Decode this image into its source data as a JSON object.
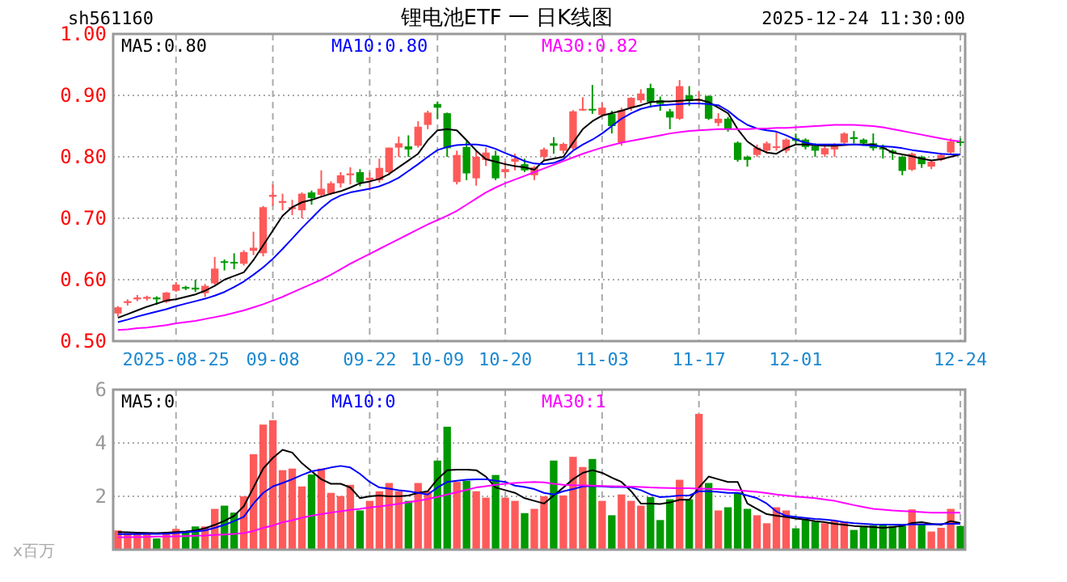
{
  "chart_data": [
    {
      "type": "candlestick",
      "title": "锂电池ETF 一 日K线图",
      "annotations": [
        "sh561160",
        "2025-12-24 11:30:00"
      ],
      "categories": [
        null,
        null,
        null,
        null,
        null,
        null,
        "2025-08-25",
        null,
        null,
        null,
        null,
        null,
        null,
        null,
        null,
        null,
        "09-08",
        null,
        null,
        null,
        null,
        null,
        null,
        null,
        null,
        null,
        "09-22",
        null,
        null,
        null,
        null,
        null,
        null,
        "10-09",
        null,
        null,
        null,
        null,
        null,
        null,
        "10-20",
        null,
        null,
        null,
        null,
        null,
        null,
        null,
        null,
        null,
        "11-03",
        null,
        null,
        null,
        null,
        null,
        null,
        null,
        null,
        null,
        "11-17",
        null,
        null,
        null,
        null,
        null,
        null,
        null,
        null,
        null,
        "12-01",
        null,
        null,
        null,
        null,
        null,
        null,
        null,
        null,
        null,
        null,
        null,
        null,
        null,
        null,
        null,
        null,
        "12-24"
      ],
      "ohlc": [
        [
          0.545,
          0.557,
          0.54,
          0.555
        ],
        [
          0.562,
          0.568,
          0.558,
          0.565
        ],
        [
          0.568,
          0.575,
          0.565,
          0.571
        ],
        [
          0.569,
          0.574,
          0.566,
          0.572
        ],
        [
          0.571,
          0.573,
          0.559,
          0.568
        ],
        [
          0.564,
          0.58,
          0.562,
          0.579
        ],
        [
          0.582,
          0.596,
          0.58,
          0.592
        ],
        [
          0.588,
          0.59,
          0.583,
          0.586
        ],
        [
          0.587,
          0.6,
          0.58,
          0.584
        ],
        [
          0.578,
          0.593,
          0.572,
          0.59
        ],
        [
          0.594,
          0.637,
          0.592,
          0.618
        ],
        [
          0.63,
          0.633,
          0.615,
          0.628
        ],
        [
          0.629,
          0.643,
          0.617,
          0.627
        ],
        [
          0.626,
          0.648,
          0.623,
          0.645
        ],
        [
          0.647,
          0.678,
          0.64,
          0.652
        ],
        [
          0.643,
          0.72,
          0.638,
          0.718
        ],
        [
          0.735,
          0.755,
          0.72,
          0.738
        ],
        [
          0.725,
          0.74,
          0.713,
          0.728
        ],
        [
          0.715,
          0.73,
          0.705,
          0.718
        ],
        [
          0.713,
          0.742,
          0.7,
          0.74
        ],
        [
          0.742,
          0.745,
          0.722,
          0.733
        ],
        [
          0.738,
          0.778,
          0.735,
          0.748
        ],
        [
          0.74,
          0.76,
          0.738,
          0.757
        ],
        [
          0.757,
          0.775,
          0.75,
          0.77
        ],
        [
          0.77,
          0.783,
          0.755,
          0.773
        ],
        [
          0.775,
          0.78,
          0.752,
          0.758
        ],
        [
          0.762,
          0.775,
          0.745,
          0.766
        ],
        [
          0.762,
          0.797,
          0.758,
          0.782
        ],
        [
          0.775,
          0.815,
          0.77,
          0.815
        ],
        [
          0.815,
          0.833,
          0.8,
          0.822
        ],
        [
          0.817,
          0.835,
          0.8,
          0.812
        ],
        [
          0.818,
          0.858,
          0.815,
          0.849
        ],
        [
          0.852,
          0.875,
          0.845,
          0.872
        ],
        [
          0.886,
          0.89,
          0.862,
          0.88
        ],
        [
          0.871,
          0.872,
          0.8,
          0.814
        ],
        [
          0.759,
          0.81,
          0.755,
          0.803
        ],
        [
          0.816,
          0.825,
          0.762,
          0.773
        ],
        [
          0.765,
          0.81,
          0.753,
          0.8
        ],
        [
          0.795,
          0.815,
          0.785,
          0.807
        ],
        [
          0.802,
          0.81,
          0.762,
          0.765
        ],
        [
          0.775,
          0.792,
          0.765,
          0.78
        ],
        [
          0.792,
          0.805,
          0.778,
          0.797
        ],
        [
          0.788,
          0.797,
          0.775,
          0.778
        ],
        [
          0.77,
          0.785,
          0.762,
          0.783
        ],
        [
          0.8,
          0.815,
          0.795,
          0.812
        ],
        [
          0.822,
          0.832,
          0.805,
          0.818
        ],
        [
          0.81,
          0.823,
          0.805,
          0.821
        ],
        [
          0.814,
          0.876,
          0.812,
          0.874
        ],
        [
          0.876,
          0.897,
          0.875,
          0.878
        ],
        [
          0.878,
          0.917,
          0.87,
          0.876
        ],
        [
          0.868,
          0.888,
          0.865,
          0.88
        ],
        [
          0.87,
          0.875,
          0.838,
          0.85
        ],
        [
          0.823,
          0.88,
          0.818,
          0.876
        ],
        [
          0.88,
          0.897,
          0.875,
          0.896
        ],
        [
          0.892,
          0.91,
          0.888,
          0.903
        ],
        [
          0.912,
          0.919,
          0.88,
          0.889
        ],
        [
          0.892,
          0.898,
          0.875,
          0.886
        ],
        [
          0.874,
          0.878,
          0.845,
          0.864
        ],
        [
          0.862,
          0.925,
          0.86,
          0.915
        ],
        [
          0.9,
          0.915,
          0.883,
          0.891
        ],
        [
          0.891,
          0.906,
          0.885,
          0.894
        ],
        [
          0.899,
          0.9,
          0.86,
          0.862
        ],
        [
          0.855,
          0.871,
          0.85,
          0.862
        ],
        [
          0.862,
          0.865,
          0.841,
          0.845
        ],
        [
          0.823,
          0.825,
          0.792,
          0.795
        ],
        [
          0.8,
          0.802,
          0.784,
          0.795
        ],
        [
          0.803,
          0.82,
          0.8,
          0.815
        ],
        [
          0.81,
          0.825,
          0.805,
          0.822
        ],
        [
          0.815,
          0.84,
          0.81,
          0.817
        ],
        [
          0.81,
          0.83,
          0.806,
          0.828
        ],
        [
          0.83,
          0.838,
          0.82,
          0.826
        ],
        [
          0.828,
          0.83,
          0.812,
          0.816
        ],
        [
          0.818,
          0.822,
          0.8,
          0.81
        ],
        [
          0.804,
          0.818,
          0.8,
          0.814
        ],
        [
          0.812,
          0.822,
          0.8,
          0.82
        ],
        [
          0.823,
          0.84,
          0.82,
          0.838
        ],
        [
          0.832,
          0.842,
          0.822,
          0.829
        ],
        [
          0.828,
          0.83,
          0.818,
          0.822
        ],
        [
          0.822,
          0.838,
          0.81,
          0.814
        ],
        [
          0.815,
          0.82,
          0.797,
          0.812
        ],
        [
          0.81,
          0.812,
          0.795,
          0.806
        ],
        [
          0.8,
          0.802,
          0.77,
          0.777
        ],
        [
          0.779,
          0.807,
          0.777,
          0.805
        ],
        [
          0.8,
          0.802,
          0.782,
          0.788
        ],
        [
          0.784,
          0.795,
          0.78,
          0.792
        ],
        [
          0.795,
          0.806,
          0.793,
          0.803
        ],
        [
          0.807,
          0.83,
          0.805,
          0.825
        ],
        [
          0.825,
          0.83,
          0.817,
          0.823
        ]
      ],
      "colors": [
        "#ff5a5a",
        "#ff5a5a",
        "#ff5a5a",
        "#ff5a5a",
        "#009900",
        "#ff5a5a",
        "#ff5a5a",
        "#009900",
        "#009900",
        "#ff5a5a",
        "#ff5a5a",
        "#009900",
        "#009900",
        "#ff5a5a",
        "#ff5a5a",
        "#ff5a5a",
        "#ff5a5a",
        "#ff5a5a",
        "#ff5a5a",
        "#ff5a5a",
        "#009900",
        "#ff5a5a",
        "#ff5a5a",
        "#ff5a5a",
        "#ff5a5a",
        "#009900",
        "#ff5a5a",
        "#ff5a5a",
        "#ff5a5a",
        "#ff5a5a",
        "#009900",
        "#ff5a5a",
        "#ff5a5a",
        "#009900",
        "#009900",
        "#ff5a5a",
        "#009900",
        "#ff5a5a",
        "#ff5a5a",
        "#009900",
        "#ff5a5a",
        "#ff5a5a",
        "#009900",
        "#ff5a5a",
        "#ff5a5a",
        "#009900",
        "#ff5a5a",
        "#ff5a5a",
        "#ff5a5a",
        "#009900",
        "#ff5a5a",
        "#009900",
        "#ff5a5a",
        "#ff5a5a",
        "#ff5a5a",
        "#009900",
        "#009900",
        "#009900",
        "#ff5a5a",
        "#009900",
        "#ff5a5a",
        "#009900",
        "#ff5a5a",
        "#009900",
        "#009900",
        "#009900",
        "#ff5a5a",
        "#ff5a5a",
        "#ff5a5a",
        "#ff5a5a",
        "#009900",
        "#009900",
        "#009900",
        "#ff5a5a",
        "#ff5a5a",
        "#ff5a5a",
        "#009900",
        "#009900",
        "#009900",
        "#009900",
        "#009900",
        "#009900",
        "#ff5a5a",
        "#009900",
        "#ff5a5a",
        "#ff5a5a",
        "#ff5a5a",
        "#009900"
      ],
      "series": [
        {
          "type": "line",
          "name": "MA5:0.80",
          "color": "#000000",
          "values": [
            0.538,
            0.544,
            0.55,
            0.556,
            0.561,
            0.566,
            0.568,
            0.572,
            0.576,
            0.582,
            0.59,
            0.6,
            0.606,
            0.612,
            0.632,
            0.656,
            0.68,
            0.704,
            0.718,
            0.726,
            0.73,
            0.735,
            0.74,
            0.744,
            0.75,
            0.757,
            0.76,
            0.764,
            0.772,
            0.783,
            0.794,
            0.805,
            0.827,
            0.843,
            0.845,
            0.843,
            0.827,
            0.81,
            0.796,
            0.792,
            0.788,
            0.785,
            0.783,
            0.779,
            0.794,
            0.797,
            0.8,
            0.823,
            0.845,
            0.858,
            0.867,
            0.871,
            0.875,
            0.88,
            0.884,
            0.889,
            0.89,
            0.89,
            0.891,
            0.892,
            0.893,
            0.889,
            0.88,
            0.871,
            0.845,
            0.825,
            0.814,
            0.807,
            0.805,
            0.814,
            0.82,
            0.82,
            0.819,
            0.818,
            0.818,
            0.819,
            0.82,
            0.82,
            0.82,
            0.815,
            0.807,
            0.804,
            0.801,
            0.797,
            0.794,
            0.796,
            0.8,
            0.804
          ]
        },
        {
          "type": "line",
          "name": "MA10:0.80",
          "color": "#0000ff",
          "values": [
            0.531,
            0.535,
            0.54,
            0.544,
            0.548,
            0.552,
            0.557,
            0.561,
            0.565,
            0.569,
            0.574,
            0.58,
            0.588,
            0.597,
            0.608,
            0.62,
            0.634,
            0.65,
            0.667,
            0.684,
            0.7,
            0.716,
            0.729,
            0.737,
            0.742,
            0.745,
            0.748,
            0.752,
            0.758,
            0.766,
            0.777,
            0.788,
            0.8,
            0.811,
            0.816,
            0.819,
            0.82,
            0.82,
            0.818,
            0.813,
            0.806,
            0.8,
            0.793,
            0.789,
            0.788,
            0.79,
            0.796,
            0.81,
            0.82,
            0.828,
            0.838,
            0.85,
            0.862,
            0.871,
            0.878,
            0.882,
            0.884,
            0.885,
            0.886,
            0.887,
            0.887,
            0.886,
            0.884,
            0.875,
            0.862,
            0.852,
            0.846,
            0.843,
            0.841,
            0.835,
            0.828,
            0.823,
            0.82,
            0.82,
            0.82,
            0.82,
            0.82,
            0.819,
            0.818,
            0.817,
            0.816,
            0.814,
            0.811,
            0.809,
            0.807,
            0.805,
            0.804,
            0.804
          ]
        },
        {
          "type": "line",
          "name": "MA30:0.82",
          "color": "#ff00ff",
          "values": [
            0.518,
            0.519,
            0.521,
            0.522,
            0.524,
            0.526,
            0.529,
            0.531,
            0.533,
            0.536,
            0.539,
            0.542,
            0.546,
            0.55,
            0.555,
            0.56,
            0.566,
            0.572,
            0.579,
            0.586,
            0.593,
            0.6,
            0.608,
            0.617,
            0.626,
            0.634,
            0.642,
            0.65,
            0.658,
            0.666,
            0.674,
            0.682,
            0.69,
            0.697,
            0.704,
            0.712,
            0.722,
            0.732,
            0.742,
            0.75,
            0.757,
            0.763,
            0.769,
            0.775,
            0.781,
            0.787,
            0.793,
            0.799,
            0.805,
            0.81,
            0.815,
            0.819,
            0.823,
            0.826,
            0.829,
            0.832,
            0.835,
            0.838,
            0.84,
            0.842,
            0.843,
            0.844,
            0.845,
            0.845,
            0.845,
            0.845,
            0.846,
            0.846,
            0.847,
            0.847,
            0.848,
            0.849,
            0.85,
            0.851,
            0.852,
            0.852,
            0.852,
            0.851,
            0.85,
            0.848,
            0.845,
            0.842,
            0.839,
            0.836,
            0.833,
            0.83,
            0.827,
            0.825
          ]
        }
      ],
      "ylim": [
        0.5,
        1.0
      ],
      "yticks": [
        {
          "value": 0.5,
          "label": "0.50"
        },
        {
          "value": 0.6,
          "label": "0.60"
        },
        {
          "value": 0.7,
          "label": "0.70"
        },
        {
          "value": 0.8,
          "label": "0.80"
        },
        {
          "value": 0.9,
          "label": "0.90"
        },
        {
          "value": 1.0,
          "label": "1.00"
        }
      ],
      "grid": true,
      "legend": "top"
    },
    {
      "type": "bar",
      "ylabel": "x百万",
      "categories": [
        null,
        null,
        null,
        null,
        null,
        null,
        null,
        null,
        null,
        null,
        null,
        null,
        null,
        null,
        null,
        null,
        null,
        null,
        null,
        null,
        null,
        null,
        null,
        null,
        null,
        null,
        null,
        null,
        null,
        null,
        null,
        null,
        null,
        null,
        null,
        null,
        null,
        null,
        null,
        null,
        null,
        null,
        null,
        null,
        null,
        null,
        null,
        null,
        null,
        null,
        null,
        null,
        null,
        null,
        null,
        null,
        null,
        null,
        null,
        null,
        null,
        null,
        null,
        null,
        null,
        null,
        null,
        null,
        null,
        null,
        null,
        null,
        null,
        null,
        null,
        null,
        null,
        null,
        null,
        null,
        null,
        null,
        null,
        null,
        null,
        null,
        null,
        null
      ],
      "values": [
        0.72,
        0.62,
        0.58,
        0.58,
        0.42,
        0.66,
        0.78,
        0.66,
        0.87,
        0.87,
        1.53,
        1.65,
        1.39,
        2.0,
        3.58,
        4.69,
        4.85,
        2.98,
        3.04,
        2.37,
        2.82,
        3.04,
        2.13,
        2.01,
        2.43,
        1.47,
        1.83,
        2.19,
        2.5,
        2.19,
        1.83,
        2.5,
        2.19,
        3.34,
        4.61,
        2.54,
        2.58,
        2.19,
        1.95,
        2.8,
        1.95,
        1.83,
        1.37,
        1.53,
        2.0,
        3.34,
        2.03,
        3.48,
        3.1,
        3.4,
        1.83,
        1.29,
        2.07,
        1.83,
        1.65,
        1.97,
        1.11,
        1.89,
        2.62,
        1.89,
        5.09,
        2.5,
        1.47,
        1.59,
        2.15,
        1.53,
        1.29,
        0.99,
        1.59,
        1.47,
        0.8,
        1.15,
        1.05,
        0.99,
        1.09,
        1.05,
        0.74,
        0.89,
        0.91,
        0.93,
        0.89,
        0.89,
        1.51,
        0.95,
        0.68,
        0.82,
        1.53,
        0.89
      ],
      "colors": [
        "#ff5a5a",
        "#ff5a5a",
        "#ff5a5a",
        "#ff5a5a",
        "#009900",
        "#ff5a5a",
        "#ff5a5a",
        "#009900",
        "#009900",
        "#ff5a5a",
        "#ff5a5a",
        "#009900",
        "#009900",
        "#ff5a5a",
        "#ff5a5a",
        "#ff5a5a",
        "#ff5a5a",
        "#ff5a5a",
        "#ff5a5a",
        "#ff5a5a",
        "#009900",
        "#ff5a5a",
        "#ff5a5a",
        "#ff5a5a",
        "#ff5a5a",
        "#009900",
        "#ff5a5a",
        "#ff5a5a",
        "#ff5a5a",
        "#ff5a5a",
        "#009900",
        "#ff5a5a",
        "#ff5a5a",
        "#009900",
        "#009900",
        "#ff5a5a",
        "#009900",
        "#ff5a5a",
        "#ff5a5a",
        "#009900",
        "#ff5a5a",
        "#ff5a5a",
        "#009900",
        "#ff5a5a",
        "#ff5a5a",
        "#009900",
        "#ff5a5a",
        "#ff5a5a",
        "#ff5a5a",
        "#009900",
        "#ff5a5a",
        "#009900",
        "#ff5a5a",
        "#ff5a5a",
        "#ff5a5a",
        "#009900",
        "#009900",
        "#009900",
        "#ff5a5a",
        "#009900",
        "#ff5a5a",
        "#009900",
        "#ff5a5a",
        "#009900",
        "#009900",
        "#009900",
        "#ff5a5a",
        "#ff5a5a",
        "#ff5a5a",
        "#ff5a5a",
        "#009900",
        "#009900",
        "#009900",
        "#ff5a5a",
        "#ff5a5a",
        "#ff5a5a",
        "#009900",
        "#009900",
        "#009900",
        "#009900",
        "#009900",
        "#009900",
        "#ff5a5a",
        "#009900",
        "#ff5a5a",
        "#ff5a5a",
        "#ff5a5a",
        "#009900"
      ],
      "series": [
        {
          "type": "line",
          "name": "MA5:0",
          "color": "#000000",
          "values": [
            0.66,
            0.65,
            0.64,
            0.63,
            0.62,
            0.64,
            0.66,
            0.68,
            0.72,
            0.8,
            0.93,
            1.08,
            1.27,
            1.63,
            2.33,
            3.04,
            3.44,
            3.74,
            3.64,
            3.24,
            2.94,
            2.64,
            2.47,
            2.47,
            2.33,
            1.93,
            2.0,
            2.03,
            2.0,
            2.0,
            2.03,
            2.13,
            2.19,
            2.64,
            2.98,
            3.0,
            3.0,
            2.98,
            2.74,
            2.33,
            2.23,
            2.13,
            1.93,
            1.83,
            1.73,
            2.03,
            2.33,
            2.64,
            2.88,
            2.98,
            2.88,
            2.7,
            2.54,
            2.19,
            1.73,
            1.73,
            1.71,
            1.77,
            1.87,
            1.87,
            2.33,
            2.74,
            2.64,
            2.54,
            2.54,
            1.73,
            1.53,
            1.33,
            1.27,
            1.23,
            1.17,
            1.13,
            1.07,
            1.03,
            0.97,
            0.93,
            0.89,
            0.87,
            0.85,
            0.82,
            0.85,
            0.89,
            1.0,
            1.03,
            0.97,
            0.93,
            1.07,
            1.0
          ]
        },
        {
          "type": "line",
          "name": "MA10:0",
          "color": "#0000ff",
          "values": [
            0.58,
            0.58,
            0.58,
            0.59,
            0.59,
            0.6,
            0.62,
            0.65,
            0.68,
            0.72,
            0.82,
            0.93,
            1.07,
            1.23,
            1.73,
            2.13,
            2.37,
            2.5,
            2.64,
            2.8,
            2.94,
            3.0,
            3.08,
            3.14,
            3.08,
            2.84,
            2.54,
            2.33,
            2.29,
            2.23,
            2.19,
            2.13,
            2.07,
            2.33,
            2.54,
            2.58,
            2.62,
            2.64,
            2.64,
            2.58,
            2.54,
            2.4,
            2.35,
            2.27,
            2.13,
            2.07,
            2.19,
            2.27,
            2.37,
            2.39,
            2.37,
            2.35,
            2.35,
            2.33,
            2.23,
            2.07,
            1.97,
            1.99,
            2.03,
            2.03,
            2.19,
            2.19,
            2.17,
            2.13,
            2.13,
            2.03,
            1.93,
            1.73,
            1.43,
            1.27,
            1.23,
            1.19,
            1.15,
            1.13,
            1.09,
            1.03,
            0.99,
            0.97,
            0.95,
            0.94,
            0.94,
            0.93,
            0.95,
            0.95,
            0.95,
            0.96,
            0.97,
            0.97
          ]
        },
        {
          "type": "line",
          "name": "MA30:1",
          "color": "#ff00ff",
          "values": [
            0.46,
            0.47,
            0.47,
            0.48,
            0.49,
            0.49,
            0.5,
            0.51,
            0.52,
            0.53,
            0.55,
            0.57,
            0.59,
            0.62,
            0.7,
            0.82,
            0.9,
            1.03,
            1.1,
            1.2,
            1.27,
            1.33,
            1.39,
            1.44,
            1.49,
            1.53,
            1.58,
            1.62,
            1.67,
            1.72,
            1.78,
            1.83,
            1.9,
            1.98,
            2.07,
            2.15,
            2.24,
            2.33,
            2.38,
            2.43,
            2.47,
            2.5,
            2.52,
            2.54,
            2.52,
            2.47,
            2.43,
            2.42,
            2.41,
            2.4,
            2.39,
            2.38,
            2.37,
            2.36,
            2.35,
            2.33,
            2.32,
            2.31,
            2.3,
            2.3,
            2.29,
            2.28,
            2.27,
            2.25,
            2.23,
            2.2,
            2.17,
            2.12,
            2.07,
            2.03,
            1.99,
            1.96,
            1.93,
            1.88,
            1.83,
            1.75,
            1.67,
            1.6,
            1.53,
            1.5,
            1.47,
            1.45,
            1.43,
            1.41,
            1.39,
            1.39,
            1.39,
            1.39
          ]
        }
      ],
      "ylim": [
        0,
        6
      ],
      "yticks": [
        2,
        4,
        6
      ],
      "grid": true,
      "legend": "top",
      "tick_labels": "y"
    }
  ]
}
